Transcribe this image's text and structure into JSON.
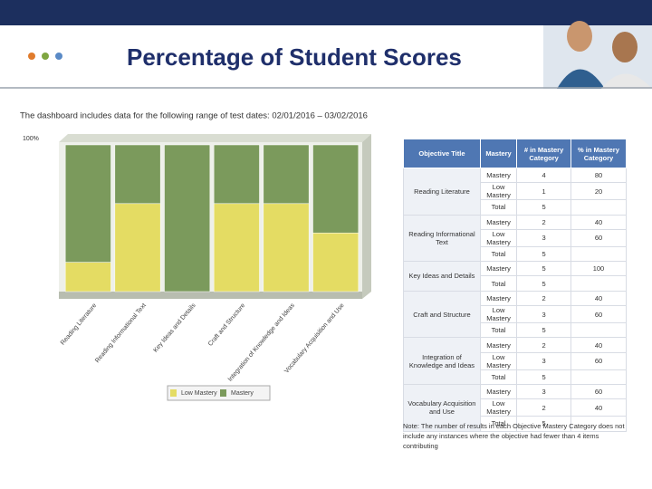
{
  "title": "Percentage of Student Scores",
  "chart_data": {
    "type": "bar",
    "stacked": true,
    "subtitle": "The dashboard includes data for the following range of test dates: 02/01/2016 – 03/02/2016",
    "categories": [
      "Reading Literature",
      "Reading Informational Text",
      "Key Ideas and Details",
      "Craft and Structure",
      "Integration of Knowledge and Ideas",
      "Vocabulary Acquisition and Use"
    ],
    "series": [
      {
        "name": "Low Mastery",
        "color": "#e4dc63",
        "values": [
          20,
          60,
          0,
          60,
          60,
          40
        ]
      },
      {
        "name": "Mastery",
        "color": "#7b9a5c",
        "values": [
          80,
          40,
          100,
          40,
          40,
          60
        ]
      }
    ],
    "ylim": [
      0,
      100
    ],
    "yticks": [
      {
        "value": 100,
        "label": "100%"
      }
    ],
    "legend": "bottom"
  },
  "table": {
    "header": [
      "Objective Title",
      "Mastery",
      "# in Mastery Category",
      "% in Mastery Category"
    ],
    "groups": [
      {
        "title": "Reading Literature",
        "rows": [
          [
            "Mastery",
            4,
            80
          ],
          [
            "Low Mastery",
            1,
            20
          ],
          [
            "Total",
            5
          ]
        ]
      },
      {
        "title": "Reading Informational Text",
        "rows": [
          [
            "Mastery",
            2,
            40
          ],
          [
            "Low Mastery",
            3,
            60
          ],
          [
            "Total",
            5
          ]
        ]
      },
      {
        "title": "Key Ideas and Details",
        "rows": [
          [
            "Mastery",
            5,
            100
          ],
          [
            "Total",
            5
          ]
        ]
      },
      {
        "title": "Craft and Structure",
        "rows": [
          [
            "Mastery",
            2,
            40
          ],
          [
            "Low Mastery",
            3,
            60
          ],
          [
            "Total",
            5
          ]
        ]
      },
      {
        "title": "Integration of Knowledge and Ideas",
        "rows": [
          [
            "Mastery",
            2,
            40
          ],
          [
            "Low Mastery",
            3,
            60
          ],
          [
            "Total",
            5
          ]
        ]
      },
      {
        "title": "Vocabulary Acquisition and Use",
        "rows": [
          [
            "Mastery",
            3,
            60
          ],
          [
            "Low Mastery",
            2,
            40
          ],
          [
            "Total",
            5
          ]
        ]
      }
    ],
    "note": "Note: The number of results in each Objective Mastery Category does not include any instances where the objective had fewer than 4 items contributing"
  }
}
